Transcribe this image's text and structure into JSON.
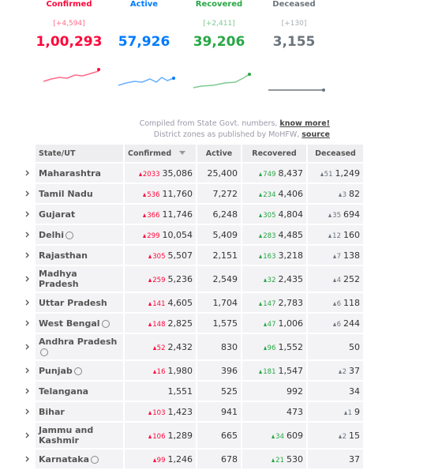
{
  "summary": [
    {
      "label": "Confirmed",
      "delta": "[+4,594]",
      "value": "1,00,293"
    },
    {
      "label": "Active",
      "delta": null,
      "value": "57,926"
    },
    {
      "label": "Recovered",
      "delta": "[+2,411]",
      "value": "39,206"
    },
    {
      "label": "Deceased",
      "delta": "[+130]",
      "value": "3,155"
    }
  ],
  "notes": [
    {
      "text": "Compiled from State Govt. numbers,",
      "link": "know more!"
    },
    {
      "text": "District zones as published by MoHFW,",
      "link": "source"
    }
  ],
  "table": {
    "headers": [
      "State/UT",
      "Confirmed",
      "Active",
      "Recovered",
      "Deceased"
    ],
    "rows": [
      {
        "name": "Maharashtra",
        "info": false,
        "confirmed_delta": "2033",
        "confirmed": "35,086",
        "active": "25,400",
        "recovered_delta": "749",
        "recovered": "8,437",
        "deceased_delta": "51",
        "deceased": "1,249"
      },
      {
        "name": "Tamil Nadu",
        "info": false,
        "confirmed_delta": "536",
        "confirmed": "11,760",
        "active": "7,272",
        "recovered_delta": "234",
        "recovered": "4,406",
        "deceased_delta": "3",
        "deceased": "82"
      },
      {
        "name": "Gujarat",
        "info": false,
        "confirmed_delta": "366",
        "confirmed": "11,746",
        "active": "6,248",
        "recovered_delta": "305",
        "recovered": "4,804",
        "deceased_delta": "35",
        "deceased": "694"
      },
      {
        "name": "Delhi",
        "info": true,
        "confirmed_delta": "299",
        "confirmed": "10,054",
        "active": "5,409",
        "recovered_delta": "283",
        "recovered": "4,485",
        "deceased_delta": "12",
        "deceased": "160"
      },
      {
        "name": "Rajasthan",
        "info": false,
        "confirmed_delta": "305",
        "confirmed": "5,507",
        "active": "2,151",
        "recovered_delta": "163",
        "recovered": "3,218",
        "deceased_delta": "7",
        "deceased": "138"
      },
      {
        "name": "Madhya Pradesh",
        "info": false,
        "confirmed_delta": "259",
        "confirmed": "5,236",
        "active": "2,549",
        "recovered_delta": "32",
        "recovered": "2,435",
        "deceased_delta": "4",
        "deceased": "252"
      },
      {
        "name": "Uttar Pradesh",
        "info": false,
        "confirmed_delta": "141",
        "confirmed": "4,605",
        "active": "1,704",
        "recovered_delta": "147",
        "recovered": "2,783",
        "deceased_delta": "6",
        "deceased": "118"
      },
      {
        "name": "West Bengal",
        "info": true,
        "confirmed_delta": "148",
        "confirmed": "2,825",
        "active": "1,575",
        "recovered_delta": "47",
        "recovered": "1,006",
        "deceased_delta": "6",
        "deceased": "244"
      },
      {
        "name": "Andhra Pradesh",
        "info": true,
        "confirmed_delta": "52",
        "confirmed": "2,432",
        "active": "830",
        "recovered_delta": "96",
        "recovered": "1,552",
        "deceased_delta": null,
        "deceased": "50"
      },
      {
        "name": "Punjab",
        "info": true,
        "confirmed_delta": "16",
        "confirmed": "1,980",
        "active": "396",
        "recovered_delta": "181",
        "recovered": "1,547",
        "deceased_delta": "2",
        "deceased": "37"
      },
      {
        "name": "Telangana",
        "info": false,
        "confirmed_delta": null,
        "confirmed": "1,551",
        "active": "525",
        "recovered_delta": null,
        "recovered": "992",
        "deceased_delta": null,
        "deceased": "34"
      },
      {
        "name": "Bihar",
        "info": false,
        "confirmed_delta": "103",
        "confirmed": "1,423",
        "active": "941",
        "recovered_delta": null,
        "recovered": "473",
        "deceased_delta": "1",
        "deceased": "9"
      },
      {
        "name": "Jammu and Kashmir",
        "info": false,
        "confirmed_delta": "106",
        "confirmed": "1,289",
        "active": "665",
        "recovered_delta": "34",
        "recovered": "609",
        "deceased_delta": "2",
        "deceased": "15"
      },
      {
        "name": "Karnataka",
        "info": true,
        "confirmed_delta": "99",
        "confirmed": "1,246",
        "active": "678",
        "recovered_delta": "21",
        "recovered": "530",
        "deceased_delta": null,
        "deceased": "37"
      }
    ]
  }
}
